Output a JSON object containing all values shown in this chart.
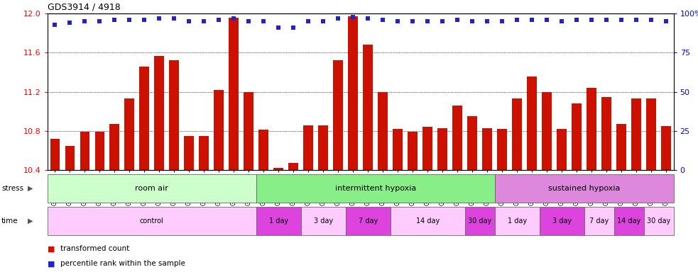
{
  "title": "GDS3914 / 4918",
  "samples": [
    "GSM215660",
    "GSM215661",
    "GSM215662",
    "GSM215663",
    "GSM215664",
    "GSM215665",
    "GSM215666",
    "GSM215667",
    "GSM215668",
    "GSM215669",
    "GSM215670",
    "GSM215671",
    "GSM215672",
    "GSM215673",
    "GSM215674",
    "GSM215675",
    "GSM215676",
    "GSM215677",
    "GSM215678",
    "GSM215679",
    "GSM215680",
    "GSM215681",
    "GSM215682",
    "GSM215683",
    "GSM215684",
    "GSM215685",
    "GSM215686",
    "GSM215687",
    "GSM215688",
    "GSM215689",
    "GSM215690",
    "GSM215691",
    "GSM215692",
    "GSM215693",
    "GSM215694",
    "GSM215695",
    "GSM215696",
    "GSM215697",
    "GSM215698",
    "GSM215699",
    "GSM215700",
    "GSM215701"
  ],
  "red_values": [
    10.72,
    10.65,
    10.79,
    10.79,
    10.87,
    11.13,
    11.46,
    11.57,
    11.52,
    10.75,
    10.75,
    11.22,
    11.96,
    11.2,
    10.81,
    10.42,
    10.47,
    10.86,
    10.86,
    11.52,
    11.97,
    11.68,
    11.2,
    10.82,
    10.79,
    10.84,
    10.83,
    11.06,
    10.95,
    10.83,
    10.82,
    11.13,
    11.36,
    11.2,
    10.82,
    11.08,
    11.24,
    11.15,
    10.87,
    11.13,
    11.13,
    10.85
  ],
  "blue_pct": [
    93,
    94,
    95,
    95,
    96,
    96,
    96,
    97,
    97,
    95,
    95,
    96,
    97,
    95,
    95,
    91,
    91,
    95,
    95,
    97,
    98,
    97,
    96,
    95,
    95,
    95,
    95,
    96,
    95,
    95,
    95,
    96,
    96,
    96,
    95,
    96,
    96,
    96,
    96,
    96,
    96,
    95
  ],
  "ylim_left": [
    10.4,
    12.0
  ],
  "ylim_right": [
    0,
    100
  ],
  "yticks_left": [
    10.4,
    10.8,
    11.2,
    11.6,
    12.0
  ],
  "yticks_right": [
    0,
    25,
    50,
    75,
    100
  ],
  "grid_lines": [
    10.8,
    11.2,
    11.6
  ],
  "bar_color": "#cc1100",
  "dot_color": "#2222cc",
  "stress_color_light": "#ccffcc",
  "stress_color_medium": "#88ee88",
  "stress_color_purple": "#dd88dd",
  "time_color_light": "#ffccff",
  "time_color_bright": "#dd44dd",
  "stress_groups": [
    {
      "label": "room air",
      "start": 0,
      "end": 14,
      "color": "#ccffcc"
    },
    {
      "label": "intermittent hypoxia",
      "start": 14,
      "end": 30,
      "color": "#88ee88"
    },
    {
      "label": "sustained hypoxia",
      "start": 30,
      "end": 42,
      "color": "#dd88dd"
    }
  ],
  "time_groups": [
    {
      "label": "control",
      "start": 0,
      "end": 14,
      "color": "#ffccff"
    },
    {
      "label": "1 day",
      "start": 14,
      "end": 17,
      "color": "#dd44dd"
    },
    {
      "label": "3 day",
      "start": 17,
      "end": 20,
      "color": "#ffccff"
    },
    {
      "label": "7 day",
      "start": 20,
      "end": 23,
      "color": "#dd44dd"
    },
    {
      "label": "14 day",
      "start": 23,
      "end": 28,
      "color": "#ffccff"
    },
    {
      "label": "30 day",
      "start": 28,
      "end": 30,
      "color": "#dd44dd"
    },
    {
      "label": "1 day",
      "start": 30,
      "end": 33,
      "color": "#ffccff"
    },
    {
      "label": "3 day",
      "start": 33,
      "end": 36,
      "color": "#dd44dd"
    },
    {
      "label": "7 day",
      "start": 36,
      "end": 38,
      "color": "#ffccff"
    },
    {
      "label": "14 day",
      "start": 38,
      "end": 40,
      "color": "#dd44dd"
    },
    {
      "label": "30 day",
      "start": 40,
      "end": 42,
      "color": "#ffccff"
    }
  ],
  "legend_red_label": "transformed count",
  "legend_blue_label": "percentile rank within the sample",
  "stress_label": "stress",
  "time_label": "time"
}
